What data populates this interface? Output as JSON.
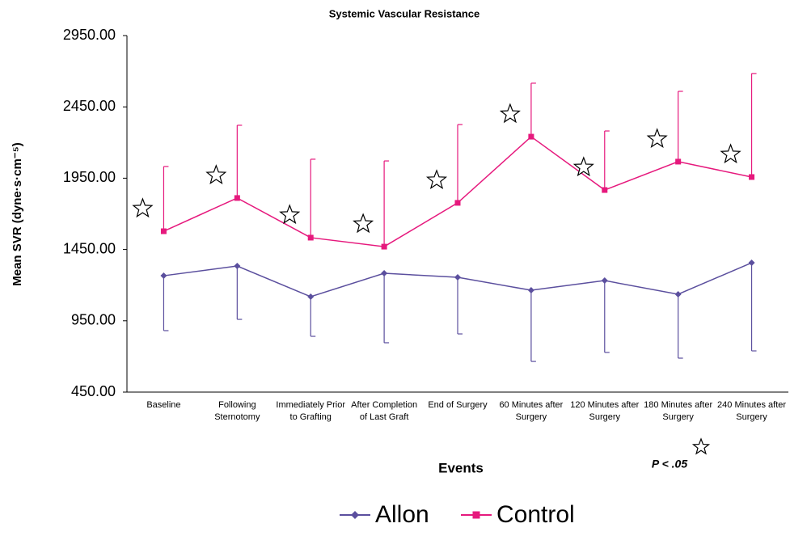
{
  "chart_data": {
    "type": "line",
    "title": "Systemic Vascular Resistance",
    "x_label": "Events",
    "y_label": "Mean SVR (dyne·s·cm⁻⁵)",
    "annotation": "P < .05",
    "categories": [
      "Baseline",
      "Following Sternotomy",
      "Immediately Prior to Grafting",
      "After Completion of Last Graft",
      "End of Surgery",
      "60 Minutes after Surgery",
      "120 Minutes after Surgery",
      "180 Minutes after Surgery",
      "240 Minutes after Surgery"
    ],
    "series": [
      {
        "name": "Allon",
        "color": "#5b4f9e",
        "error_direction": "down",
        "values": [
          1266,
          1334,
          1119,
          1283,
          1255,
          1164,
          1232,
          1136,
          1357
        ],
        "errors": [
          385,
          374,
          278,
          487,
          397,
          499,
          504,
          448,
          618
        ]
      },
      {
        "name": "Control",
        "color": "#e6197d",
        "error_direction": "up",
        "values": [
          1578,
          1811,
          1533,
          1470,
          1777,
          2241,
          1867,
          2066,
          1958
        ],
        "errors": [
          454,
          510,
          550,
          601,
          549,
          375,
          414,
          493,
          726
        ]
      }
    ],
    "ylim": [
      450,
      2950
    ],
    "yticks": [
      {
        "value": 450,
        "label": "450.00"
      },
      {
        "value": 950,
        "label": "950.00"
      },
      {
        "value": 1450,
        "label": "1450.00"
      },
      {
        "value": 1950,
        "label": "1950.00"
      },
      {
        "value": 2450,
        "label": "2450.00"
      },
      {
        "value": 2950,
        "label": "2950.00"
      }
    ],
    "grid": false,
    "legend": "bottom"
  }
}
